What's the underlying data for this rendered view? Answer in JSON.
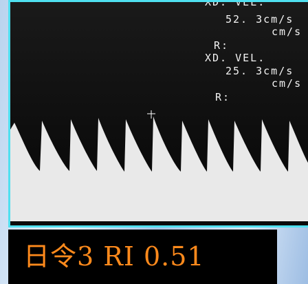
{
  "overlay": {
    "lines": [
      "XD. VEL.",
      "52. 3cm/s",
      "cm/s",
      "R:",
      "XD. VEL.",
      "25. 3cm/s",
      "cm/s",
      "R:"
    ]
  },
  "caption": "日令3 RI 0.51"
}
